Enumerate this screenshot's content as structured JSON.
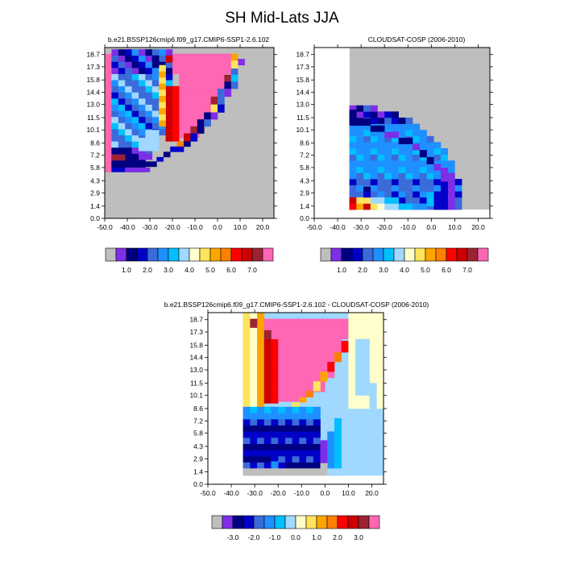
{
  "title": "SH Mid-Lats JJA",
  "colors": {
    "seq": [
      "#bebebe",
      "#7d2ee6",
      "#000080",
      "#0000c8",
      "#3b6bd9",
      "#1e90ff",
      "#00bfff",
      "#a0d8ff",
      "#ffffcc",
      "#ffe45c",
      "#ffa500",
      "#ff7f00",
      "#ff0000",
      "#cc0000",
      "#9c2333",
      "#ff66b3"
    ],
    "diff": [
      "#bebebe",
      "#7d2ee6",
      "#000080",
      "#0000c8",
      "#3b6bd9",
      "#1e90ff",
      "#00bfff",
      "#a0d8ff",
      "#ffffcc",
      "#ffe45c",
      "#ffa500",
      "#ff7f00",
      "#ff0000",
      "#cc0000",
      "#9c2333",
      "#ff66b3"
    ]
  },
  "chart_data": [
    {
      "type": "heatmap",
      "title": "b.e21.BSSP126cmip6.f09_g17.CMIP6-SSP1-2.6.102",
      "xticks": [
        "-50.0",
        "-40.0",
        "-30.0",
        "-20.0",
        "-10.0",
        "0.0",
        "10.0",
        "20.0"
      ],
      "yticks": [
        "0.0",
        "1.4",
        "2.9",
        "4.3",
        "5.8",
        "7.2",
        "8.6",
        "10.1",
        "11.5",
        "13.0",
        "14.4",
        "15.8",
        "17.3",
        "18.7"
      ],
      "xlim": [
        -50,
        25
      ],
      "ylim": [
        0,
        19.5
      ],
      "colorbar_labels": [
        "1.0",
        "2.0",
        "3.0",
        "4.0",
        "5.0",
        "6.0",
        "7.0"
      ],
      "colorbar": "seq",
      "rows": [
        "0000000000000000000000",
        "0000000000000000000000",
        "0000000000000000000000",
        "0000000000000000000000",
        "0000000000000000000000",
        "0000000000000000000000",
        "0000000000000000000000",
        "0000000000000000000000",
        "0000000000000000000000",
        "0000000000000000000000",
        "0000000000000000000000",
        "0000000000000000000000",
        "0000000000000000000000",
        "0000000000000000000000",
        "0000000000000000000000",
        "0000000000000000000000",
        "0000000000000000000000",
        "0000000000000000000000",
        "0000000000000000000000",
        "0000000000000000000000",
        "0000000000000000000000",
        "0000000000000000000000",
        "0000000000000000000000",
        "0000000000000000000000",
        "0000000000000000000000",
        "3333333333000000000000",
        "E433344440000000000000",
        "E44244443000000000000",
        "E44444556300000000000",
        "F44452543300000000000",
        "F44555555433000000000",
        "F44566565342C000000000",
        "F44566566544CC00000000",
        "F44565666543DFC0000000",
        "F44455556544DFF4000000",
        "F44444545444DFFF500000",
        "F44444444444CFFFC50000",
        "F44444444444CFFFF30000",
        "F44444443434DFFFD4000",
        "F44444443334DFFFFC000",
        "F44444433434DFFFFF400",
        "F44444434444DFFFFFF00",
        "F44333434343DFFFFFFE0",
        "F44233233343CFFFFFF700",
        "F44313133343CFFFFFFB00",
        "F4423213334CFFFFFFFC00",
        "F443323333AFFFFFFFF500",
        "F44322233EFFFFFFFFF930",
        "F44432434EFFFFFFFFF610"
      ]
    },
    {
      "type": "heatmap",
      "title": "CLOUDSAT-COSP (2006-2010)",
      "xticks": [
        "-50.0",
        "-40.0",
        "-30.0",
        "-20.0",
        "-10.0",
        "0.0",
        "10.0",
        "20.0"
      ],
      "yticks": [
        "0.0",
        "1.4",
        "2.9",
        "4.3",
        "5.8",
        "7.2",
        "8.6",
        "10.1",
        "11.5",
        "13.0",
        "14.4",
        "15.8",
        "17.3",
        "18.7"
      ],
      "xlim": [
        -50,
        25
      ],
      "ylim": [
        0,
        19.5
      ],
      "colorbar_labels": [
        "1.0",
        "2.0",
        "3.0",
        "4.0",
        "5.0",
        "6.0",
        "7.0"
      ],
      "colorbar": "seq"
    },
    {
      "type": "heatmap",
      "title": "b.e21.BSSP126cmip6.f09_g17.CMIP6-SSP1-2.6.102 - CLOUDSAT-COSP (2006-2010)",
      "xticks": [
        "-50.0",
        "-40.0",
        "-30.0",
        "-20.0",
        "-10.0",
        "0.0",
        "10.0",
        "20.0"
      ],
      "yticks": [
        "0.0",
        "1.4",
        "2.9",
        "4.3",
        "5.8",
        "7.2",
        "8.6",
        "10.1",
        "11.5",
        "13.0",
        "14.4",
        "15.8",
        "17.3",
        "18.7"
      ],
      "xlim": [
        -50,
        25
      ],
      "ylim": [
        0,
        19.5
      ],
      "colorbar_labels": [
        "-3.0",
        "-2.0",
        "-1.0",
        "0.0",
        "1.0",
        "2.0",
        "3.0"
      ],
      "colorbar": "diff"
    }
  ]
}
